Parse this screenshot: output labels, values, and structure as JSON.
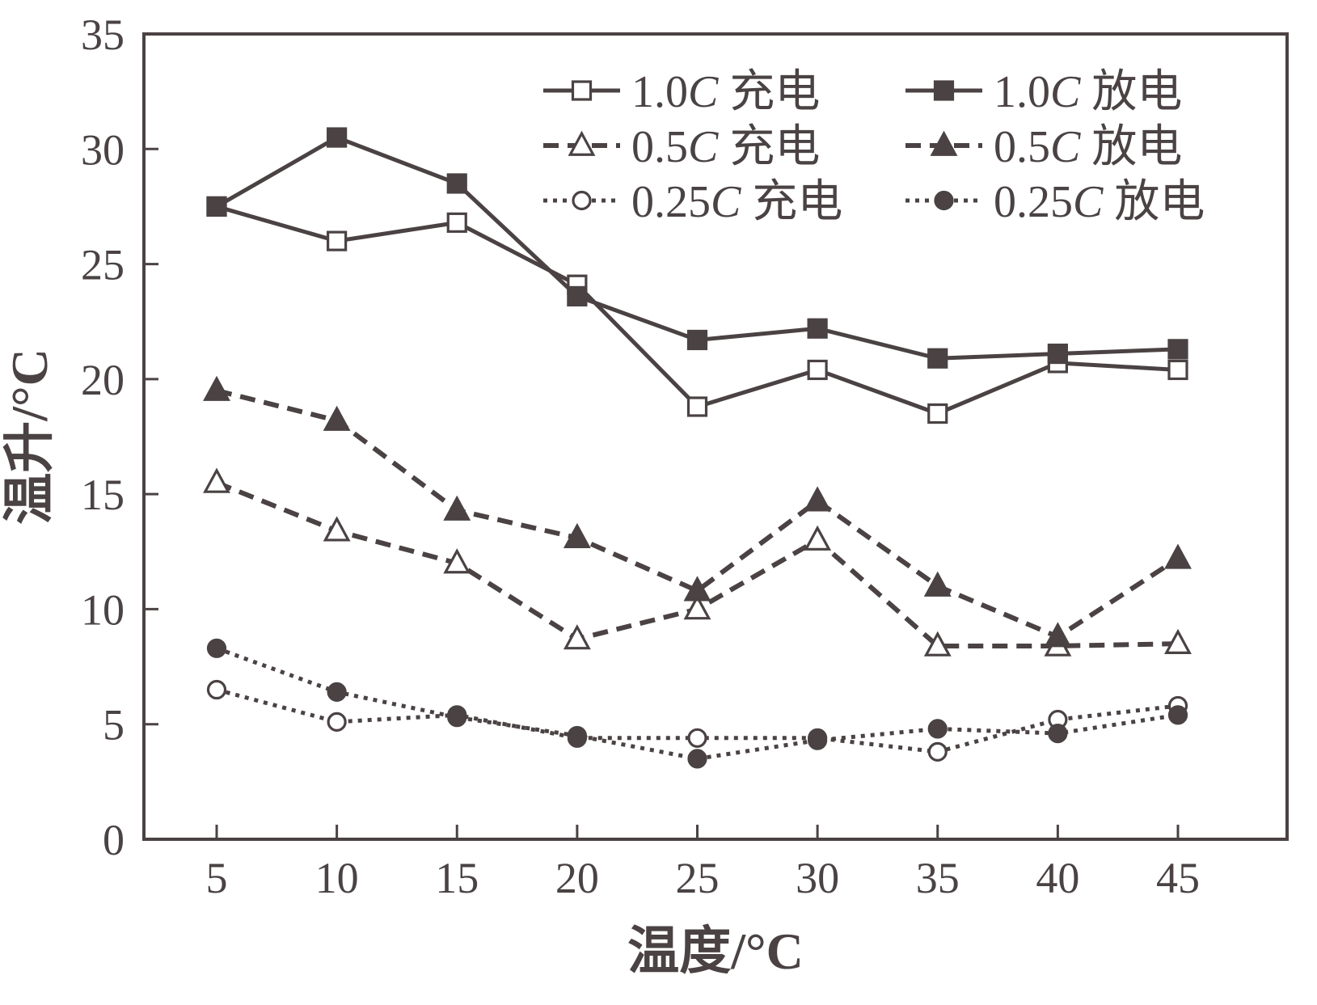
{
  "chart_data": {
    "type": "line",
    "title": "",
    "xlabel": "温度/°C",
    "ylabel": "温升/°C",
    "x": [
      5,
      10,
      15,
      20,
      25,
      30,
      35,
      40,
      45
    ],
    "x_ticks": [
      5,
      10,
      15,
      20,
      25,
      30,
      35,
      40,
      45
    ],
    "y_ticks": [
      0,
      5,
      10,
      15,
      20,
      25,
      30,
      35
    ],
    "xlim": [
      2,
      48
    ],
    "ylim": [
      0,
      35
    ],
    "grid": false,
    "legend_position": "top-center-inside",
    "ink_color": "#4a4243",
    "background_color": "#ffffff",
    "series": [
      {
        "name": "1.0C 充电",
        "marker": "square",
        "fill": "open",
        "line": "solid",
        "values": [
          27.5,
          26.0,
          26.8,
          24.1,
          18.8,
          20.4,
          18.5,
          20.7,
          20.4
        ]
      },
      {
        "name": "1.0C 放电",
        "marker": "square",
        "fill": "filled",
        "line": "solid",
        "values": [
          27.5,
          30.5,
          28.5,
          23.6,
          21.7,
          22.2,
          20.9,
          21.1,
          21.3
        ]
      },
      {
        "name": "0.5C 充电",
        "marker": "triangle",
        "fill": "open",
        "line": "dashed",
        "values": [
          15.5,
          13.4,
          12.0,
          8.7,
          10.0,
          13.0,
          8.4,
          8.4,
          8.5
        ]
      },
      {
        "name": "0.5C 放电",
        "marker": "triangle",
        "fill": "filled",
        "line": "dashed",
        "values": [
          19.5,
          18.2,
          14.3,
          13.1,
          10.8,
          14.7,
          11.0,
          8.8,
          12.2
        ]
      },
      {
        "name": "0.25C 充电",
        "marker": "circle",
        "fill": "open",
        "line": "dotted",
        "values": [
          6.5,
          5.1,
          5.4,
          4.4,
          4.4,
          4.4,
          3.8,
          5.2,
          5.8
        ]
      },
      {
        "name": "0.25C 放电",
        "marker": "circle",
        "fill": "filled",
        "line": "dotted",
        "values": [
          8.3,
          6.4,
          5.3,
          4.5,
          3.5,
          4.3,
          4.8,
          4.6,
          5.4
        ]
      }
    ]
  }
}
